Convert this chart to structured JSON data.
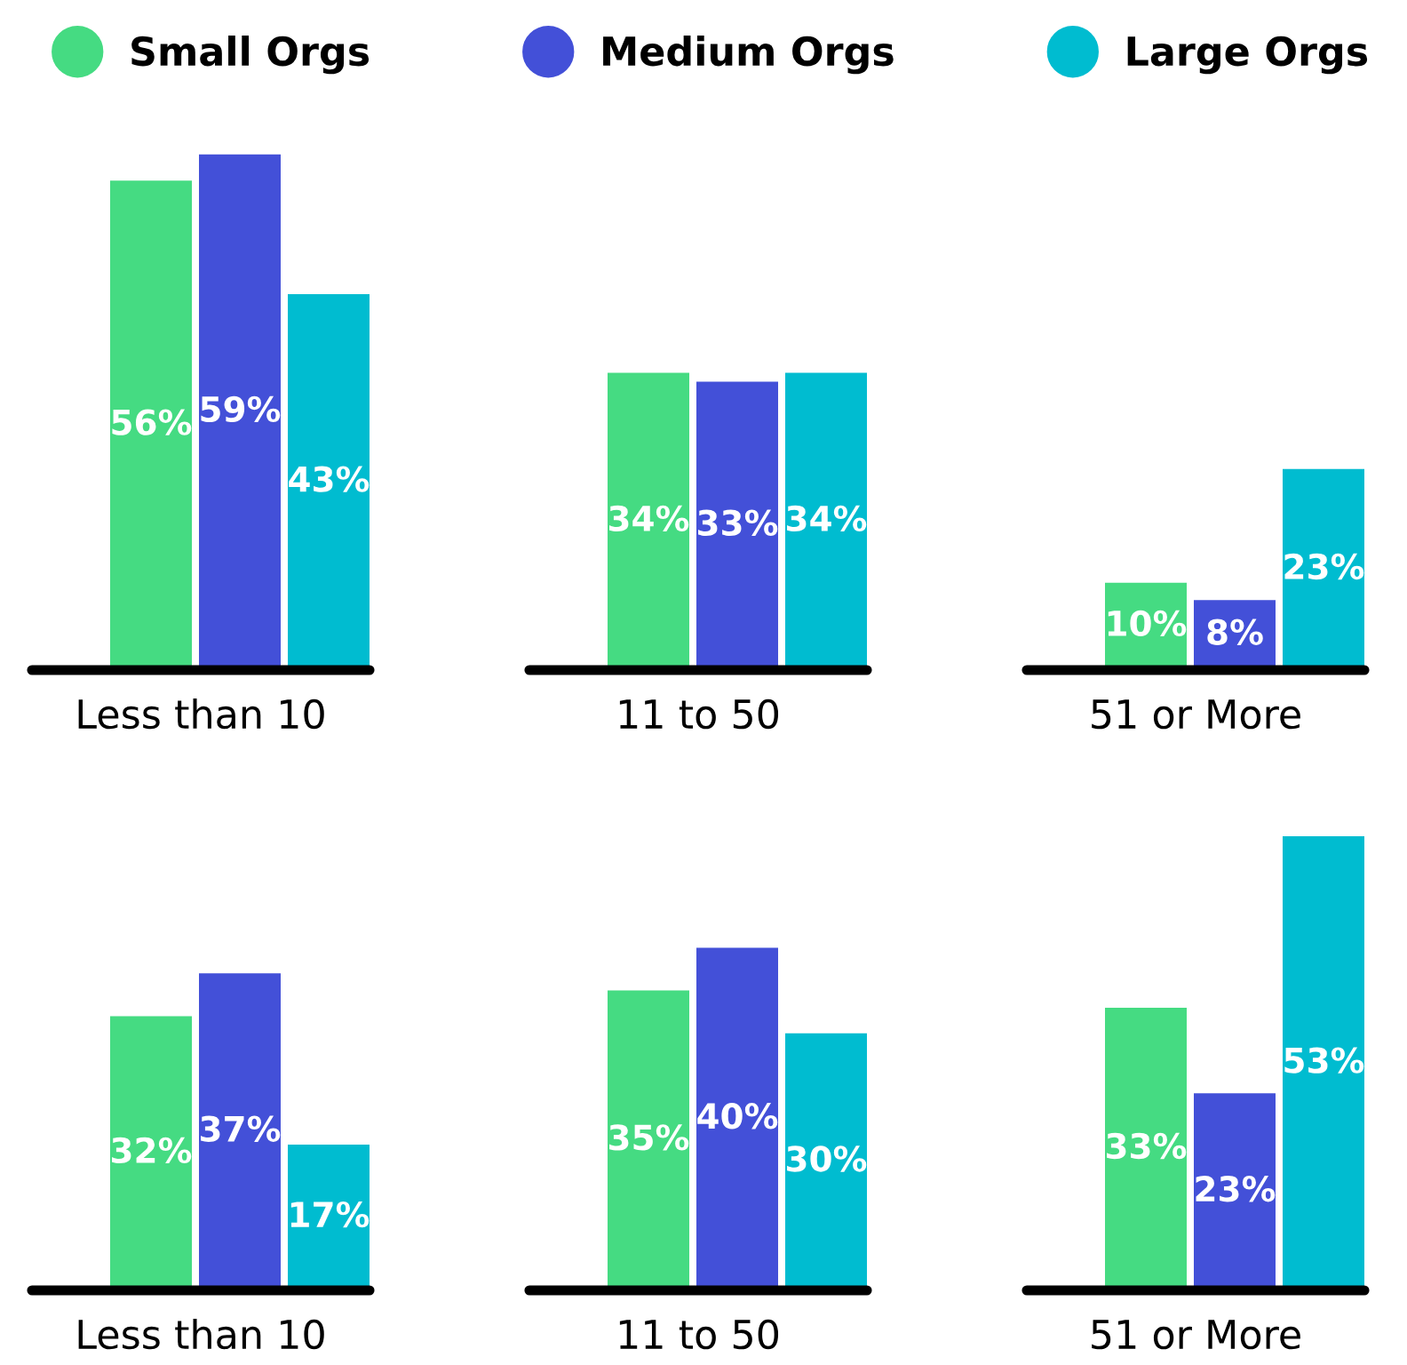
{
  "chart_data": [
    {
      "type": "bar",
      "xlabel": "Less than 10",
      "categories": [
        null
      ],
      "legend": "top",
      "series": [
        {
          "name": "Small Orgs",
          "color": "#45db82",
          "values": [
            56
          ],
          "value_labels": [
            "56%"
          ]
        },
        {
          "name": "Medium Orgs",
          "color": "#4350d8",
          "values": [
            59
          ],
          "value_labels": [
            "59%"
          ]
        },
        {
          "name": "Large Orgs",
          "color": "#00bcd0",
          "values": [
            43
          ],
          "value_labels": [
            "43%"
          ]
        }
      ]
    },
    {
      "type": "bar",
      "xlabel": "11 to 50",
      "categories": [
        null
      ],
      "series": [
        {
          "color": "#45db82",
          "values": [
            34
          ],
          "value_labels": [
            "34%"
          ]
        },
        {
          "color": "#4350d8",
          "values": [
            33
          ],
          "value_labels": [
            "33%"
          ]
        },
        {
          "color": "#00bcd0",
          "values": [
            34
          ],
          "value_labels": [
            "34%"
          ]
        }
      ]
    },
    {
      "type": "bar",
      "xlabel": "51 or More",
      "categories": [
        null
      ],
      "series": [
        {
          "color": "#45db82",
          "values": [
            10
          ],
          "value_labels": [
            "10%"
          ]
        },
        {
          "color": "#4350d8",
          "values": [
            8
          ],
          "value_labels": [
            "8%"
          ]
        },
        {
          "color": "#00bcd0",
          "values": [
            23
          ],
          "value_labels": [
            "23%"
          ]
        }
      ]
    },
    {
      "type": "bar",
      "xlabel": "Less than 10",
      "categories": [
        null
      ],
      "series": [
        {
          "color": "#45db82",
          "values": [
            32
          ],
          "value_labels": [
            "32%"
          ]
        },
        {
          "color": "#4350d8",
          "values": [
            37
          ],
          "value_labels": [
            "37%"
          ]
        },
        {
          "color": "#00bcd0",
          "values": [
            17
          ],
          "value_labels": [
            "17%"
          ]
        }
      ]
    },
    {
      "type": "bar",
      "xlabel": "11 to 50",
      "categories": [
        null
      ],
      "series": [
        {
          "color": "#45db82",
          "values": [
            35
          ],
          "value_labels": [
            "35%"
          ]
        },
        {
          "color": "#4350d8",
          "values": [
            40
          ],
          "value_labels": [
            "40%"
          ]
        },
        {
          "color": "#00bcd0",
          "values": [
            30
          ],
          "value_labels": [
            "30%"
          ]
        }
      ]
    },
    {
      "type": "bar",
      "xlabel": "51 or More",
      "categories": [
        null
      ],
      "series": [
        {
          "color": "#45db82",
          "values": [
            33
          ],
          "value_labels": [
            "33%"
          ]
        },
        {
          "color": "#4350d8",
          "values": [
            23
          ],
          "value_labels": [
            "23%"
          ]
        },
        {
          "color": "#00bcd0",
          "values": [
            53
          ],
          "value_labels": [
            "53%"
          ]
        }
      ]
    }
  ]
}
